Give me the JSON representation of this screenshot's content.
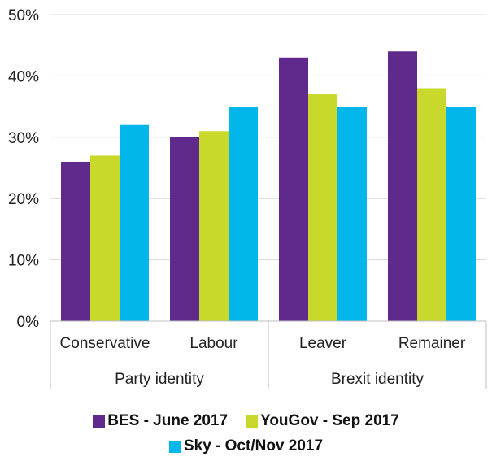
{
  "colors": {
    "bes": "#5f2a8c",
    "yougov": "#c8d92c",
    "sky": "#00b6eb",
    "grid": "#d9d9d9",
    "axis": "#bfbfbf",
    "text": "#222222"
  },
  "chart_data": {
    "type": "bar",
    "categories": [
      "Conservative",
      "Labour",
      "Leaver",
      "Remainer"
    ],
    "groups": [
      {
        "label": "Party identity",
        "categories": [
          "Conservative",
          "Labour"
        ]
      },
      {
        "label": "Brexit identity",
        "categories": [
          "Leaver",
          "Remainer"
        ]
      }
    ],
    "series": [
      {
        "name": "BES - June 2017",
        "values": [
          26,
          30,
          43,
          44
        ]
      },
      {
        "name": "YouGov - Sep 2017",
        "values": [
          27,
          31,
          37,
          38
        ]
      },
      {
        "name": "Sky - Oct/Nov 2017",
        "values": [
          32,
          35,
          35,
          35
        ]
      }
    ],
    "ylim": [
      0,
      50
    ],
    "yticks": [
      "0%",
      "10%",
      "20%",
      "30%",
      "40%",
      "50%"
    ],
    "grid": true,
    "legend_position": "bottom"
  }
}
